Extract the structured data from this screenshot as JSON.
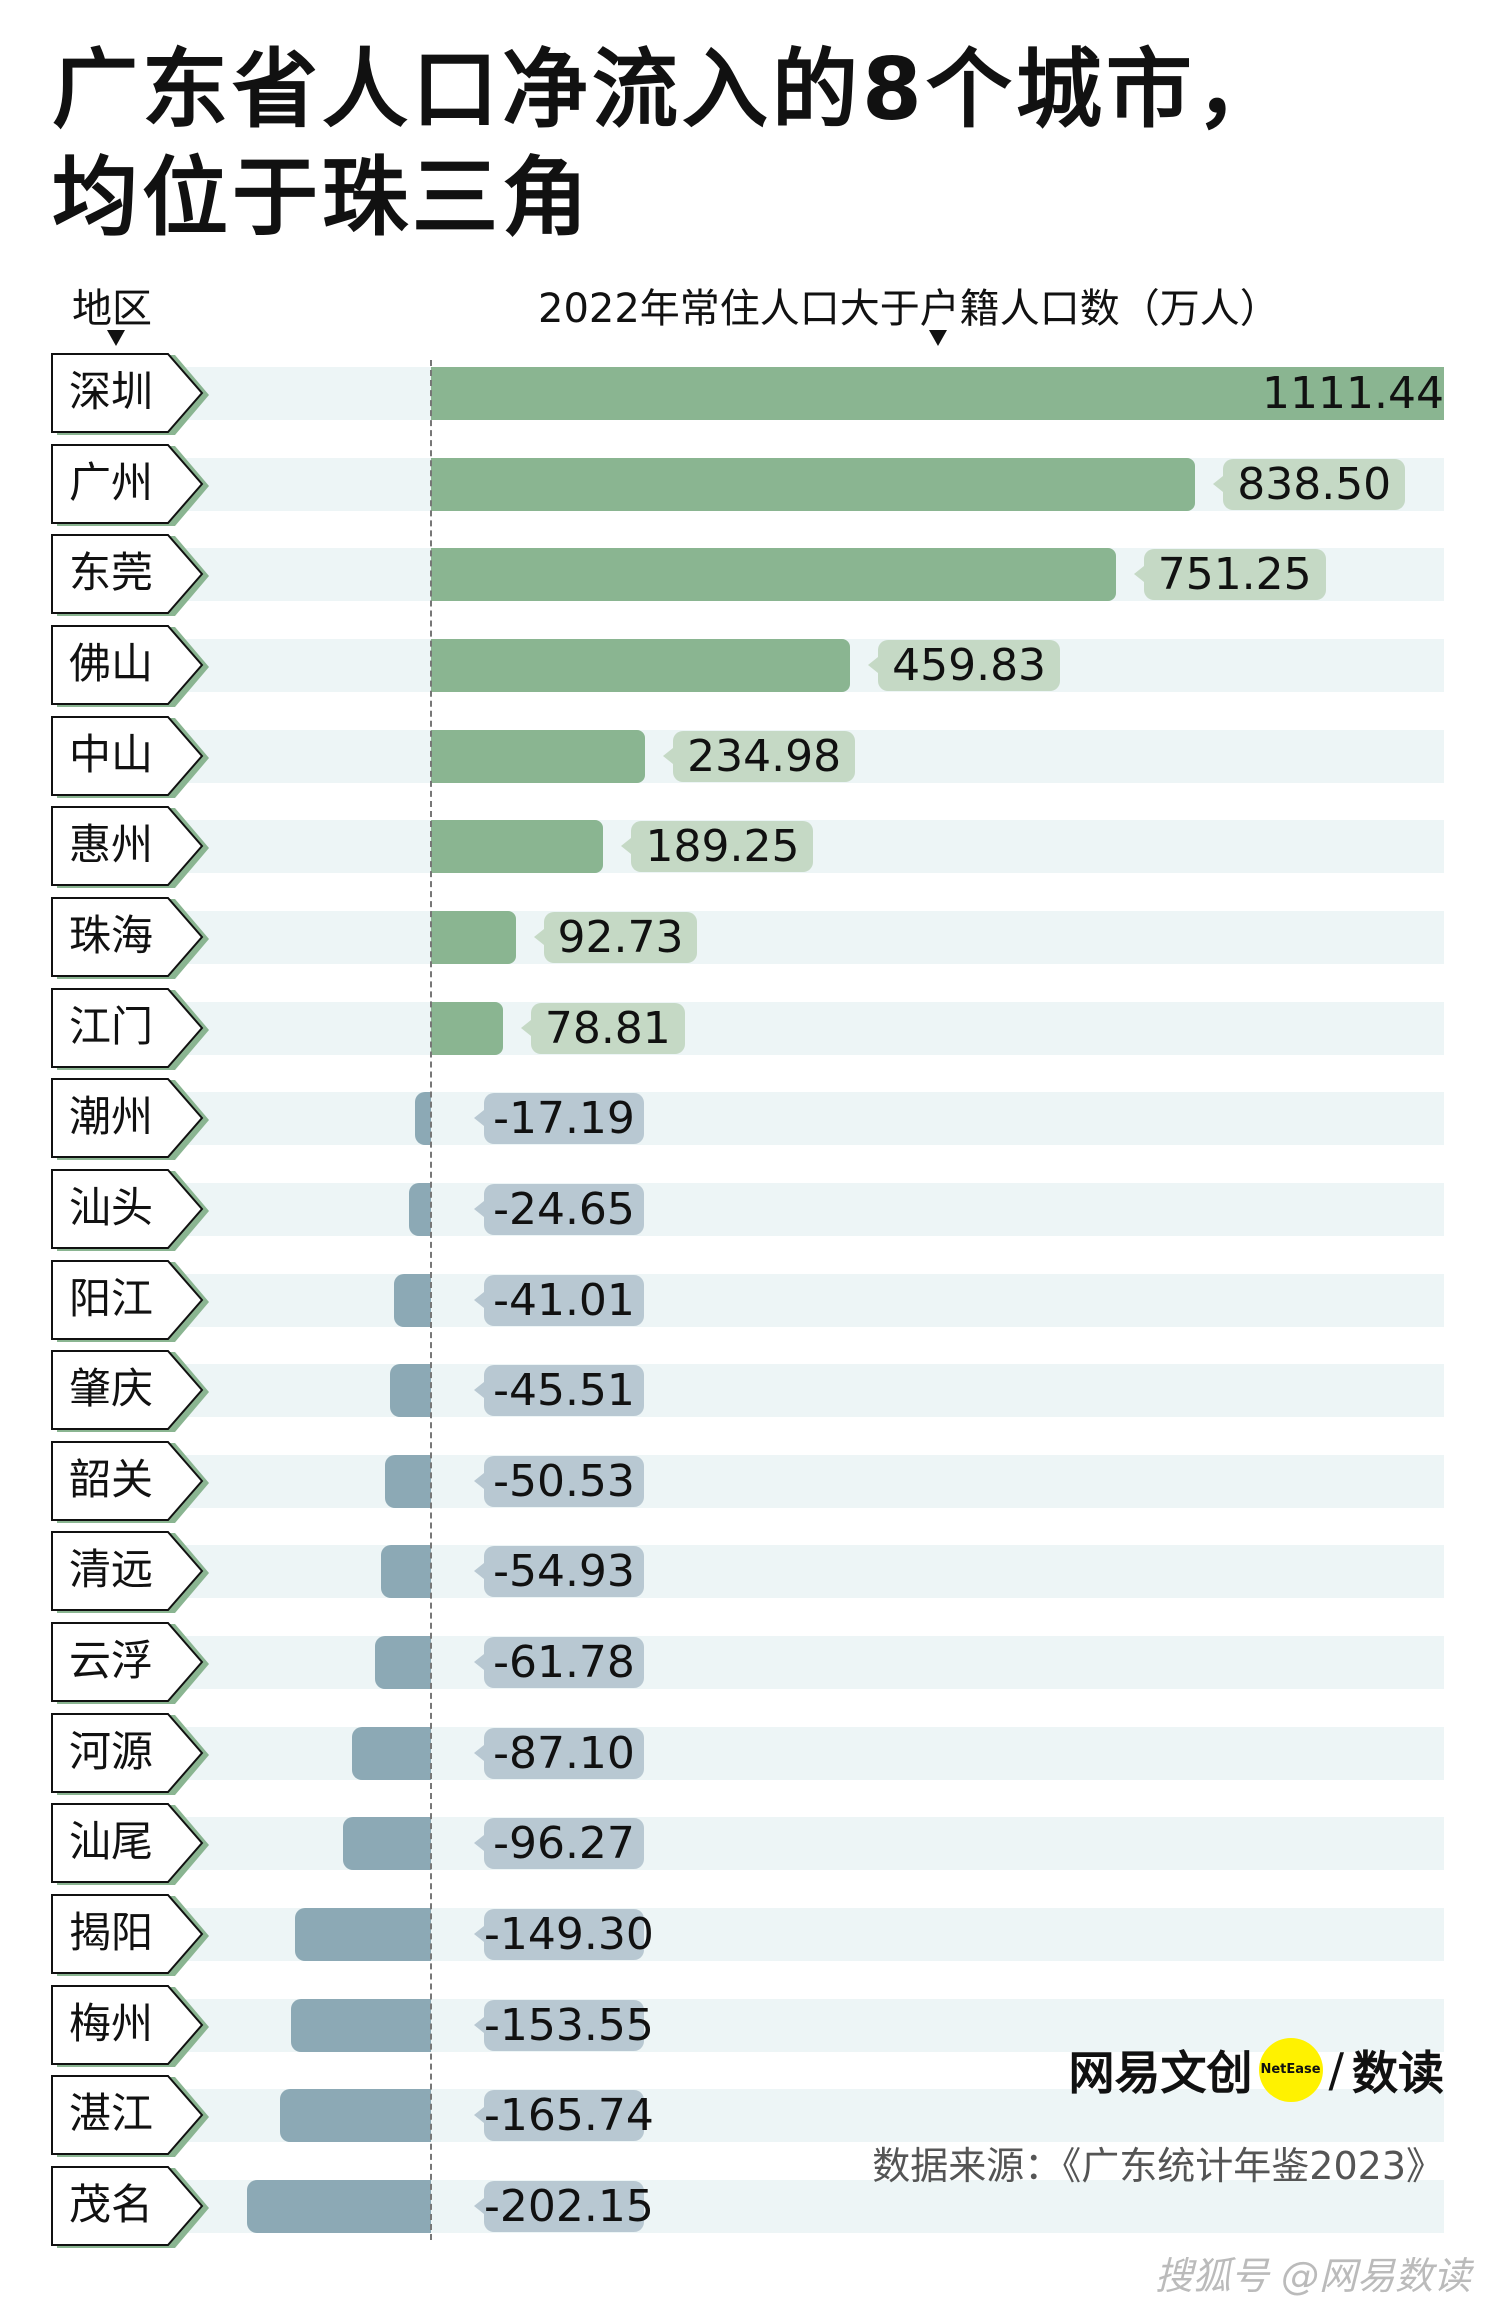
{
  "title": [
    "广东省人口净流入的8个城市，",
    "均位于珠三角"
  ],
  "chart_data": {
    "type": "bar",
    "orientation": "horizontal",
    "xlabel_region": "地区",
    "value_label": "2022年常住人口大于户籍人口数（万人）",
    "categories": [
      "深圳",
      "广州",
      "东莞",
      "佛山",
      "中山",
      "惠州",
      "珠海",
      "江门",
      "潮州",
      "汕头",
      "阳江",
      "肇庆",
      "韶关",
      "清远",
      "云浮",
      "河源",
      "汕尾",
      "揭阳",
      "梅州",
      "湛江",
      "茂名"
    ],
    "values": [
      1111.44,
      838.5,
      751.25,
      459.83,
      234.98,
      189.25,
      92.73,
      78.81,
      -17.19,
      -24.65,
      -41.01,
      -45.51,
      -50.53,
      -54.93,
      -61.78,
      -87.1,
      -96.27,
      -149.3,
      -153.55,
      -165.74,
      -202.15
    ],
    "value_labels": [
      "1111.44",
      "838.50",
      "751.25",
      "459.83",
      "234.98",
      "189.25",
      "92.73",
      "78.81",
      "-17.19",
      "-24.65",
      "-41.01",
      "-45.51",
      "-50.53",
      "-54.93",
      "-61.78",
      "-87.10",
      "-96.27",
      "-149.30",
      "-153.55",
      "-165.74",
      "-202.15"
    ],
    "colors": {
      "positive": "#8ab591",
      "negative": "#8ca9b5",
      "positive_label": "#c5d9c5",
      "negative_label": "#b8c8d2",
      "band": "#edf5f6"
    }
  },
  "logo": {
    "left": "网易文创",
    "badge": "NetEase",
    "right": "数读",
    "sep": "/"
  },
  "source": "数据来源：《广东统计年鉴2023》",
  "watermark": "搜狐号 @网易数读"
}
